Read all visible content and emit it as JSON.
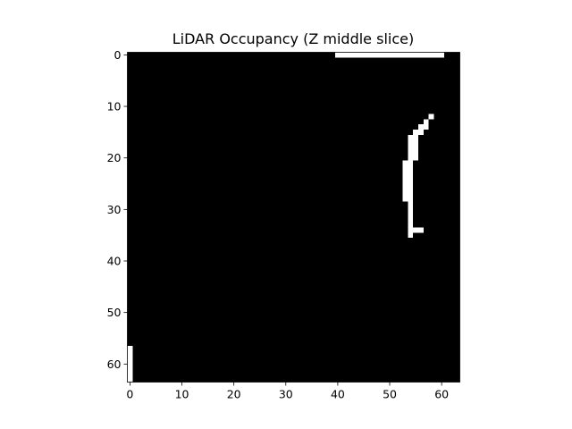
{
  "chart_data": {
    "type": "heatmap",
    "title": "LiDAR Occupancy (Z middle slice)",
    "xlabel": "",
    "ylabel": "",
    "grid": false,
    "legend": "none",
    "colormap": {
      "empty": "#000000",
      "occupied": "#ffffff"
    },
    "value_range": [
      0,
      1
    ],
    "shape": [
      64,
      64
    ],
    "xlim": [
      -0.5,
      63.5
    ],
    "ylim": [
      63.5,
      -0.5
    ],
    "y_axis_inverted": true,
    "x_ticks": [
      0,
      10,
      20,
      30,
      40,
      50,
      60
    ],
    "y_ticks": [
      0,
      10,
      20,
      30,
      40,
      50,
      60
    ],
    "x_tick_labels": [
      "0",
      "10",
      "20",
      "30",
      "40",
      "50",
      "60"
    ],
    "y_tick_labels": [
      "0",
      "10",
      "20",
      "30",
      "40",
      "50",
      "60"
    ],
    "occupied_runs": [
      {
        "row": 0,
        "col_start": 40,
        "col_end": 60
      },
      {
        "row": 12,
        "col_start": 58,
        "col_end": 58
      },
      {
        "row": 13,
        "col_start": 57,
        "col_end": 57
      },
      {
        "row": 14,
        "col_start": 56,
        "col_end": 57
      },
      {
        "row": 15,
        "col_start": 55,
        "col_end": 56
      },
      {
        "row": 16,
        "col_start": 54,
        "col_end": 55
      },
      {
        "row": 17,
        "col_start": 54,
        "col_end": 55
      },
      {
        "row": 18,
        "col_start": 54,
        "col_end": 55
      },
      {
        "row": 19,
        "col_start": 54,
        "col_end": 55
      },
      {
        "row": 20,
        "col_start": 54,
        "col_end": 55
      },
      {
        "row": 21,
        "col_start": 53,
        "col_end": 54
      },
      {
        "row": 22,
        "col_start": 53,
        "col_end": 54
      },
      {
        "row": 23,
        "col_start": 53,
        "col_end": 54
      },
      {
        "row": 24,
        "col_start": 53,
        "col_end": 54
      },
      {
        "row": 25,
        "col_start": 53,
        "col_end": 54
      },
      {
        "row": 26,
        "col_start": 53,
        "col_end": 54
      },
      {
        "row": 27,
        "col_start": 53,
        "col_end": 54
      },
      {
        "row": 28,
        "col_start": 53,
        "col_end": 54
      },
      {
        "row": 29,
        "col_start": 54,
        "col_end": 54
      },
      {
        "row": 30,
        "col_start": 54,
        "col_end": 54
      },
      {
        "row": 31,
        "col_start": 54,
        "col_end": 54
      },
      {
        "row": 32,
        "col_start": 54,
        "col_end": 54
      },
      {
        "row": 33,
        "col_start": 54,
        "col_end": 54
      },
      {
        "row": 34,
        "col_start": 54,
        "col_end": 56
      },
      {
        "row": 35,
        "col_start": 54,
        "col_end": 54
      },
      {
        "row": 57,
        "col_start": 0,
        "col_end": 0
      },
      {
        "row": 58,
        "col_start": 0,
        "col_end": 0
      },
      {
        "row": 59,
        "col_start": 0,
        "col_end": 0
      },
      {
        "row": 60,
        "col_start": 0,
        "col_end": 0
      },
      {
        "row": 61,
        "col_start": 0,
        "col_end": 0
      },
      {
        "row": 62,
        "col_start": 0,
        "col_end": 0
      },
      {
        "row": 63,
        "col_start": 0,
        "col_end": 0
      }
    ]
  }
}
